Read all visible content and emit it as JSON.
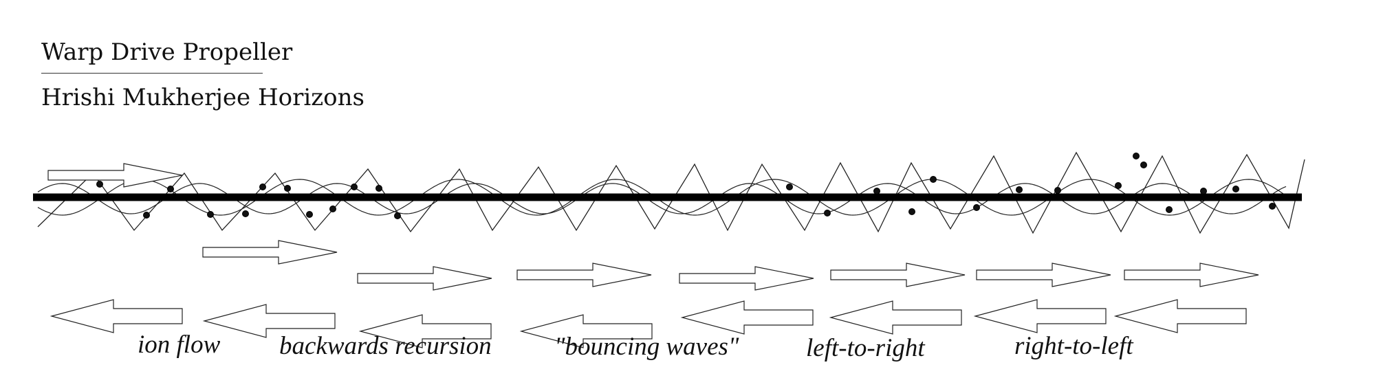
{
  "header": {
    "title": "Warp Drive Propeller",
    "subtitle": "Hrishi Mukherjee Horizons"
  },
  "captions": [
    {
      "id": "ion-flow",
      "text": "ion flow"
    },
    {
      "id": "backwards-recursion",
      "text": "backwards recursion"
    },
    {
      "id": "bouncing-waves",
      "text": "\"bouncing waves\""
    },
    {
      "id": "left-to-right",
      "text": "left-to-right"
    },
    {
      "id": "right-to-left",
      "text": "right-to-left"
    }
  ],
  "arrows": {
    "rightward_count": 8,
    "leftward_count": 8
  }
}
